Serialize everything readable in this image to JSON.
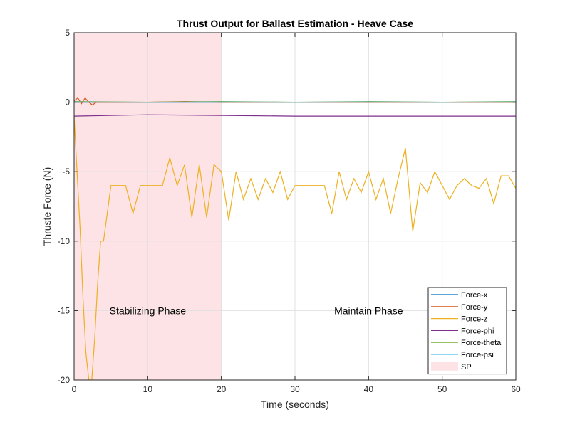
{
  "chart_data": {
    "type": "line",
    "title": "Thrust Output for Ballast Estimation - Heave Case",
    "xlabel": "Time (seconds)",
    "ylabel": "Thruste Force (N)",
    "xlim": [
      0,
      60
    ],
    "ylim": [
      -20,
      5
    ],
    "xticks": [
      0,
      10,
      20,
      30,
      40,
      50,
      60
    ],
    "yticks": [
      5,
      0,
      -5,
      -10,
      -15,
      -20
    ],
    "grid": true,
    "legend_position": "bottom-right",
    "shaded_region": {
      "name": "SP",
      "x_start": 0,
      "x_end": 20,
      "color": "#fde3e5"
    },
    "annotations": [
      {
        "text": "Stabilizing Phase",
        "x": 10,
        "y": -15
      },
      {
        "text": "Maintain Phase",
        "x": 40,
        "y": -15
      }
    ],
    "series": [
      {
        "name": "Force-x",
        "color": "#0072bd",
        "x": [
          0,
          10,
          20,
          30,
          40,
          50,
          60
        ],
        "y": [
          0,
          0,
          0,
          0,
          0,
          0,
          0
        ]
      },
      {
        "name": "Force-y",
        "color": "#d95319",
        "x": [
          0,
          0.5,
          1.0,
          1.5,
          2.0,
          2.5,
          3.0,
          5,
          10,
          15,
          20,
          30,
          40,
          50,
          60
        ],
        "y": [
          0.1,
          0.3,
          -0.1,
          0.3,
          0.0,
          -0.2,
          0.0,
          0.0,
          0.0,
          0.05,
          0.0,
          0.0,
          0.0,
          0.0,
          0.0
        ]
      },
      {
        "name": "Force-z",
        "color": "#edb120",
        "x": [
          0,
          0.4,
          0.8,
          1.2,
          1.6,
          2.0,
          2.4,
          2.8,
          3.2,
          3.6,
          4.0,
          4.5,
          5.0,
          6.0,
          7.0,
          8.0,
          9.0,
          10.0,
          12.0,
          13.0,
          14.0,
          15.0,
          16.0,
          17.0,
          18.0,
          19.0,
          20.0,
          21.0,
          22.0,
          23.0,
          24.0,
          25.0,
          26.0,
          27.0,
          28.0,
          29.0,
          30.0,
          32.0,
          34.0,
          35.0,
          36.0,
          37.0,
          38.0,
          39.0,
          40.0,
          41.0,
          42.0,
          43.0,
          44.0,
          45.0,
          46.0,
          47.0,
          48.0,
          49.0,
          50.0,
          51.0,
          52.0,
          53.0,
          54.0,
          55.0,
          56.0,
          57.0,
          58.0,
          59.0,
          60.0
        ],
        "y": [
          -1,
          -5,
          -9,
          -14,
          -18,
          -20,
          -20,
          -17,
          -13,
          -10,
          -10,
          -8,
          -6,
          -6,
          -6,
          -8,
          -6,
          -6,
          -6,
          -4,
          -6,
          -4.5,
          -8.3,
          -4.5,
          -8.3,
          -4.5,
          -5,
          -8.5,
          -5,
          -7,
          -5.5,
          -7,
          -5.5,
          -6.5,
          -5,
          -7,
          -6,
          -6,
          -6,
          -8,
          -5,
          -7,
          -5.5,
          -6.5,
          -5,
          -7,
          -5.5,
          -8,
          -5.5,
          -3.3,
          -9.3,
          -5.8,
          -6.5,
          -5,
          -6,
          -7,
          -6,
          -5.5,
          -6,
          -6.2,
          -5.5,
          -7.3,
          -5.3,
          -5.3,
          -6.2
        ]
      },
      {
        "name": "Force-phi",
        "color": "#7e2f8e",
        "x": [
          0,
          10,
          20,
          30,
          40,
          50,
          60
        ],
        "y": [
          -1.0,
          -0.9,
          -0.95,
          -1.0,
          -1.0,
          -1.0,
          -1.0
        ]
      },
      {
        "name": "Force-theta",
        "color": "#77ac30",
        "x": [
          0,
          10,
          20,
          30,
          40,
          50,
          60
        ],
        "y": [
          0.05,
          0.0,
          0.05,
          0.0,
          0.05,
          0.0,
          0.05
        ]
      },
      {
        "name": "Force-psi",
        "color": "#4dbeee",
        "x": [
          0,
          10,
          20,
          30,
          40,
          50,
          60
        ],
        "y": [
          0.02,
          0.0,
          0.02,
          0.0,
          0.02,
          0.0,
          0.02
        ]
      }
    ]
  }
}
